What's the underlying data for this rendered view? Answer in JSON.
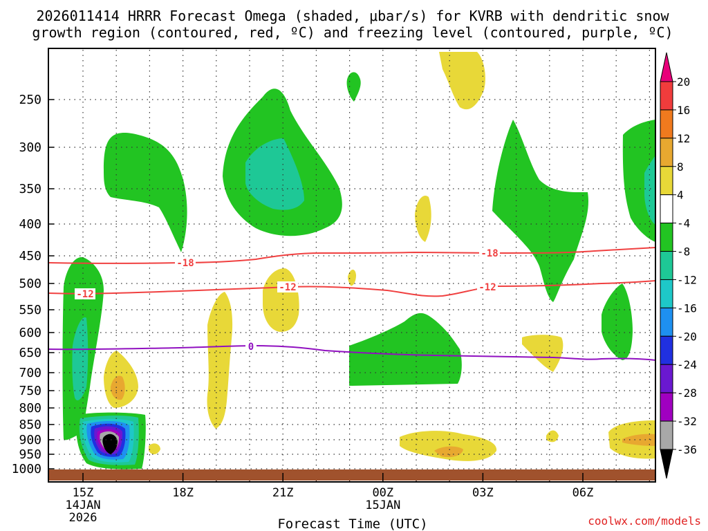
{
  "chart_data": {
    "type": "heatmap",
    "title_line1": "2026011414 HRRR Forecast Omega (shaded, μbar/s) for KVRB with dendritic snow",
    "title_line2": "growth region (contoured, red, ºC) and freezing level (contoured, purple, ºC)",
    "xlabel": "Forecast Time (UTC)",
    "credit": "coolwx.com/models",
    "y_ticks": [
      "250",
      "300",
      "350",
      "400",
      "450",
      "500",
      "550",
      "600",
      "650",
      "700",
      "750",
      "800",
      "850",
      "900",
      "950",
      "1000"
    ],
    "x_ticks": [
      {
        "label": "15Z",
        "sub1": "14JAN",
        "sub2": "2026"
      },
      {
        "label": "18Z",
        "sub1": "",
        "sub2": ""
      },
      {
        "label": "21Z",
        "sub1": "",
        "sub2": ""
      },
      {
        "label": "00Z",
        "sub1": "15JAN",
        "sub2": ""
      },
      {
        "label": "03Z",
        "sub1": "",
        "sub2": ""
      },
      {
        "label": "06Z",
        "sub1": "",
        "sub2": ""
      }
    ],
    "colorbar": {
      "labels": [
        "20",
        "16",
        "12",
        "8",
        "4",
        "-4",
        "-8",
        "-12",
        "-16",
        "-20",
        "-24",
        "-28",
        "-32",
        "-36"
      ],
      "colors": [
        "#e8007a",
        "#f03c3c",
        "#f07a1e",
        "#e8a830",
        "#e8d838",
        "#ffffff",
        "#22c422",
        "#1ec896",
        "#1ec8c8",
        "#1e90f0",
        "#2030e0",
        "#6a18d0",
        "#a000c0",
        "#a8a8a8",
        "#000000"
      ]
    },
    "contours": {
      "dendritic_minus18": {
        "label": "-18",
        "color": "#f04040"
      },
      "dendritic_minus12": {
        "label": "-12",
        "color": "#f04040"
      },
      "freezing_0": {
        "label": "0",
        "color": "#9010c0"
      }
    },
    "terrain_color": "#a0522d"
  }
}
